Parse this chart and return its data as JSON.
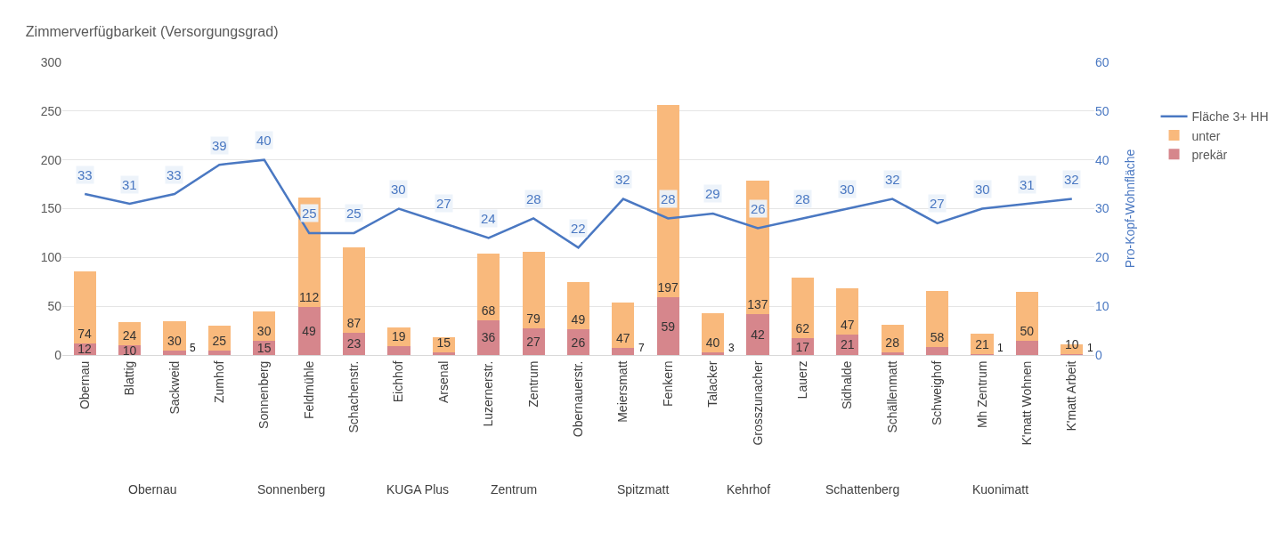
{
  "chart_data": {
    "type": "bar",
    "title": "Zimmerverfügbarkeit (Versorgungsgrad)",
    "y2label": "Pro-Kopf-Wohnfläche",
    "categories": [
      "Obernau",
      "Blattig",
      "Sackweid",
      "Zumhof",
      "Sonnenberg",
      "Feldmühle",
      "Schachenstr.",
      "Eichhof",
      "Arsenal",
      "Luzernerstr.",
      "Zentrum",
      "Obernauerstr.",
      "Meiersmatt",
      "Fenkern",
      "Talacker",
      "Grosszunacher",
      "Lauerz",
      "Sidhalde",
      "Schällenmatt",
      "Schweighof",
      "Mh Zentrum",
      "K'matt Wohnen",
      "K'matt Arbeit"
    ],
    "annotations": [
      "Obernau",
      "Sonnenberg",
      "KUGA Plus",
      "Zentrum",
      "Spitzmatt",
      "Kehrhof",
      "Schattenberg",
      "Kuonimatt"
    ],
    "stacked": true,
    "series": [
      {
        "name": "prekär",
        "color": "#d6868c",
        "values": [
          12,
          10,
          5,
          5,
          15,
          49,
          23,
          9,
          3,
          36,
          27,
          26,
          7,
          59,
          3,
          42,
          17,
          21,
          3,
          8,
          1,
          15,
          1
        ],
        "value_labels": [
          "12",
          "10",
          "5",
          null,
          "15",
          "49",
          "23",
          null,
          null,
          "36",
          "27",
          "26",
          "7",
          "59",
          "3",
          "42",
          "17",
          "21",
          null,
          null,
          "1",
          null,
          "1"
        ]
      },
      {
        "name": "unter",
        "color": "#f9b97c",
        "values": [
          74,
          24,
          30,
          25,
          30,
          112,
          87,
          19,
          15,
          68,
          79,
          49,
          47,
          197,
          40,
          137,
          62,
          47,
          28,
          58,
          21,
          50,
          10
        ],
        "value_labels": [
          "74",
          "24",
          "30",
          "25",
          "30",
          "112",
          "87",
          "19",
          "15",
          "68",
          "79",
          "49",
          "47",
          "197",
          "40",
          "137",
          "62",
          "47",
          "28",
          "58",
          "21",
          "50",
          "10"
        ]
      },
      {
        "name": "Fläche 3+ HH",
        "type": "line",
        "axis": "y2",
        "color": "#4a78c2",
        "values": [
          33,
          31,
          33,
          39,
          40,
          25,
          25,
          30,
          27,
          24,
          28,
          22,
          32,
          28,
          29,
          26,
          28,
          30,
          32,
          27,
          30,
          31,
          32
        ],
        "value_labels": [
          "33",
          "31",
          "33",
          "39",
          "40",
          "25",
          "25",
          "30",
          "27",
          "24",
          "28",
          "22",
          "32",
          "28",
          "29",
          "26",
          "28",
          "30",
          "32",
          "27",
          "30",
          "31",
          "32"
        ]
      }
    ],
    "ylim": [
      0,
      300
    ],
    "yticks": [
      0,
      50,
      100,
      150,
      200,
      250,
      300
    ],
    "y2lim": [
      0,
      60
    ],
    "y2ticks": [
      0,
      10,
      20,
      30,
      40,
      50,
      60
    ],
    "grid": "y",
    "legend": "right",
    "marker": "none",
    "line_style": "solid"
  }
}
